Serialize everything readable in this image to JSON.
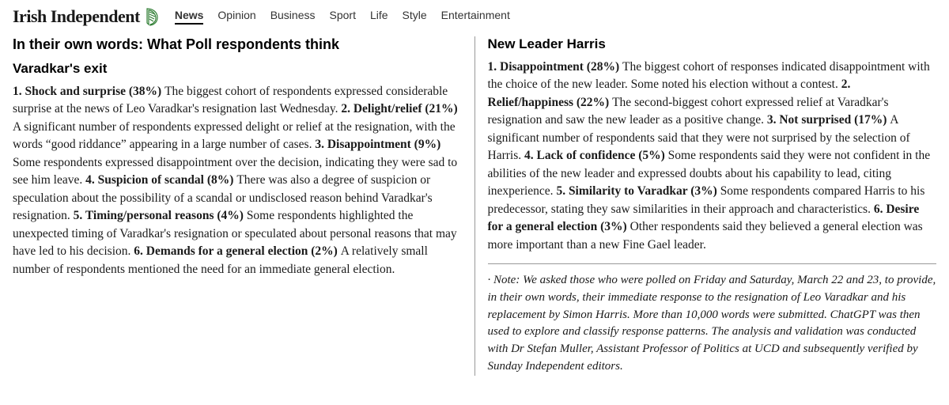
{
  "brand": {
    "name": "Irish Independent"
  },
  "nav": {
    "items": [
      "News",
      "Opinion",
      "Business",
      "Sport",
      "Life",
      "Style",
      "Entertainment"
    ],
    "active_index": 0
  },
  "article": {
    "main_title": "In their own words: What Poll respondents think",
    "left": {
      "section_title": "Varadkar's exit",
      "points": [
        {
          "n": "1.",
          "label": "Shock and surprise (38%)",
          "text": "The biggest cohort of respondents expressed considerable surprise at the news of Leo Varadkar's resignation last Wednesday."
        },
        {
          "n": "2.",
          "label": "Delight/relief (21%)",
          "text": "A significant number of respondents expressed delight or relief at the resignation, with the words “good riddance” appearing in a large number of cases."
        },
        {
          "n": "3.",
          "label": "Disappointment (9%)",
          "text": "Some respondents expressed disappointment over the decision, indicating they were sad to see him leave."
        },
        {
          "n": "4.",
          "label": "Suspicion of scandal (8%)",
          "text": "There was also a degree of suspicion or speculation about the possibility of a scandal or undisclosed reason behind Varadkar's resignation."
        },
        {
          "n": "5.",
          "label": "Timing/personal reasons (4%)",
          "text": "Some respondents highlighted the unexpected timing of Varadkar's resignation or speculated about personal reasons that may have led to his decision."
        },
        {
          "n": "6.",
          "label": "Demands for a general election (2%)",
          "text": "A relatively small number of respondents mentioned the need for an immediate general election."
        }
      ]
    },
    "right": {
      "section_title": "New Leader Harris",
      "points": [
        {
          "n": "1.",
          "label": "Disappointment (28%)",
          "text": "The biggest cohort of responses indicated disappointment with the choice of the new leader. Some noted his election without a contest."
        },
        {
          "n": "2.",
          "label": "Relief/happiness (22%)",
          "text": "The second-biggest cohort expressed relief at Varadkar's resignation and saw the new leader as a positive change."
        },
        {
          "n": "3.",
          "label": "Not surprised (17%)",
          "text": "A significant number of respondents said that they were not surprised by the selection of Harris."
        },
        {
          "n": "4.",
          "label": "Lack of confidence (5%)",
          "text": "Some respondents said they were not confident in the abilities of the new leader and expressed doubts about his capability to lead, citing inexperience."
        },
        {
          "n": "5.",
          "label": "Similarity to Varadkar (3%)",
          "text": "Some respondents compared Harris to his predecessor, stating they saw similarities in their approach and characteristics."
        },
        {
          "n": "6.",
          "label": "Desire for a general election (3%)",
          "text": "Other respondents said they believed a general election was more important than a new Fine Gael leader."
        }
      ],
      "note": "· Note: We asked those who were polled on Friday and Saturday, March 22 and 23, to provide, in their own words, their immediate response to the resignation of Leo Varadkar and his replacement by Simon Harris. More than 10,000 words were submitted. ChatGPT was then used to explore and classify response patterns. The analysis and validation was conducted with Dr Stefan Muller, Assistant Professor of Politics at UCD and subsequently verified by Sunday Independent editors."
    }
  },
  "colors": {
    "harp": "#2e7d32",
    "text": "#1a1a1a",
    "divider": "#999999"
  }
}
